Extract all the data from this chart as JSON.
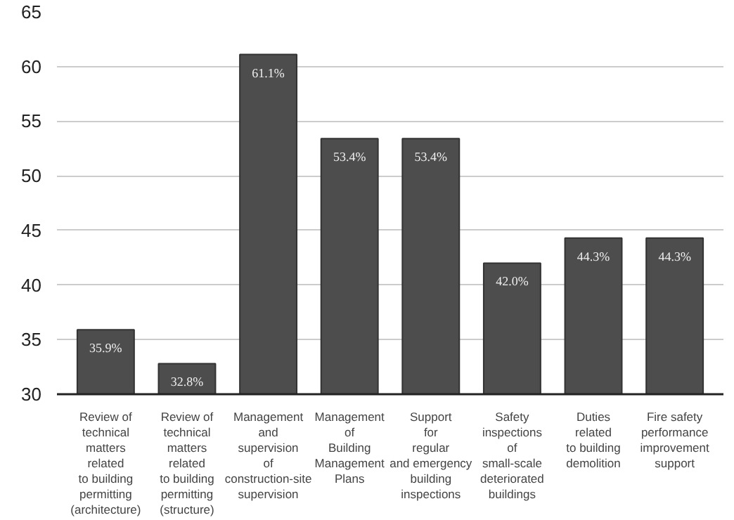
{
  "chart_data": {
    "type": "bar",
    "categories": [
      "Review of\ntechnical\nmatters\nrelated\nto building\npermitting\n(architecture)",
      "Review of\ntechnical\nmatters\nrelated\nto building\npermitting\n(structure)",
      "Management\nand\nsupervision\nof\nconstruction-site\nsupervision",
      "Management\nof\nBuilding\nManagement\nPlans",
      "Support\nfor\nregular\nand emergency\nbuilding\ninspections",
      "Safety\ninspections\nof\nsmall-scale\ndeteriorated\nbuildings",
      "Duties\nrelated\nto building\ndemolition",
      "Fire safety\nperformance\nimprovement\nsupport"
    ],
    "values": [
      35.9,
      32.8,
      61.1,
      53.4,
      53.4,
      42.0,
      44.3,
      44.3
    ],
    "value_labels": [
      "35.9%",
      "32.8%",
      "61.1%",
      "53.4%",
      "53.4%",
      "42.0%",
      "44.3%",
      "44.3%"
    ],
    "color": "#4d4d4d",
    "ylim": [
      30,
      65
    ],
    "yticks": [
      30,
      35,
      40,
      45,
      50,
      55,
      60,
      65
    ],
    "grid": "y"
  }
}
